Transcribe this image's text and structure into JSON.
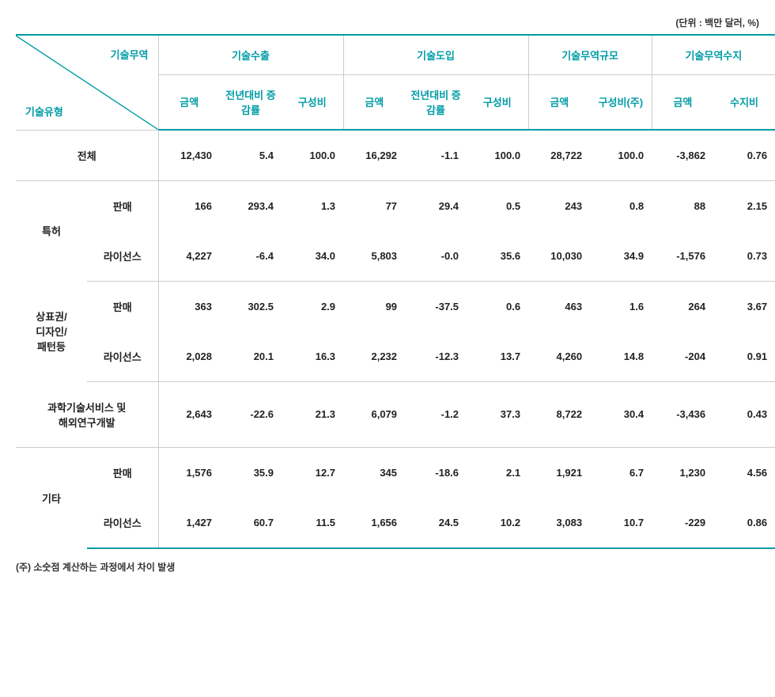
{
  "unit_label": "(단위 : 백만 달러, %)",
  "header": {
    "corner_top": "기술무역",
    "corner_bottom": "기술유형",
    "groups": [
      {
        "label": "기술수출",
        "cols": [
          "금액",
          "전년대비\n증감률",
          "구성비"
        ]
      },
      {
        "label": "기술도입",
        "cols": [
          "금액",
          "전년대비\n증감률",
          "구성비"
        ]
      },
      {
        "label": "기술무역규모",
        "cols": [
          "금액",
          "구성비(주)"
        ]
      },
      {
        "label": "기술무역수지",
        "cols": [
          "금액",
          "수지비"
        ]
      }
    ]
  },
  "rows": [
    {
      "label_a": "전체",
      "label_b": "",
      "span": 1,
      "cells": [
        "12,430",
        "5.4",
        "100.0",
        "16,292",
        "-1.1",
        "100.0",
        "28,722",
        "100.0",
        "-3,862",
        "0.76"
      ]
    },
    {
      "label_a": "특허",
      "label_b": "판매",
      "span": 2,
      "cells": [
        "166",
        "293.4",
        "1.3",
        "77",
        "29.4",
        "0.5",
        "243",
        "0.8",
        "88",
        "2.15"
      ]
    },
    {
      "label_b": "라이선스",
      "cells": [
        "4,227",
        "-6.4",
        "34.0",
        "5,803",
        "-0.0",
        "35.6",
        "10,030",
        "34.9",
        "-1,576",
        "0.73"
      ]
    },
    {
      "label_a": "상표권/\n디자인/\n패턴등",
      "label_b": "판매",
      "span": 2,
      "cells": [
        "363",
        "302.5",
        "2.9",
        "99",
        "-37.5",
        "0.6",
        "463",
        "1.6",
        "264",
        "3.67"
      ]
    },
    {
      "label_b": "라이선스",
      "cells": [
        "2,028",
        "20.1",
        "16.3",
        "2,232",
        "-12.3",
        "13.7",
        "4,260",
        "14.8",
        "-204",
        "0.91"
      ]
    },
    {
      "label_a": "과학기술서비스 및\n해외연구개발",
      "label_b": "",
      "span": 1,
      "cells": [
        "2,643",
        "-22.6",
        "21.3",
        "6,079",
        "-1.2",
        "37.3",
        "8,722",
        "30.4",
        "-3,436",
        "0.43"
      ]
    },
    {
      "label_a": "기타",
      "label_b": "판매",
      "span": 2,
      "cells": [
        "1,576",
        "35.9",
        "12.7",
        "345",
        "-18.6",
        "2.1",
        "1,921",
        "6.7",
        "1,230",
        "4.56"
      ]
    },
    {
      "label_b": "라이선스",
      "cells": [
        "1,427",
        "60.7",
        "11.5",
        "1,656",
        "24.5",
        "10.2",
        "3,083",
        "10.7",
        "-229",
        "0.86"
      ]
    }
  ],
  "footnote": "(주) 소숫점 계산하는 과정에서 차이 발생",
  "style": {
    "accent_color": "#009ca6",
    "border_color": "#cccccc",
    "text_color": "#222222",
    "background": "#ffffff",
    "font_size_cell": 13,
    "font_size_small": 12,
    "row_padding_v": 22
  }
}
